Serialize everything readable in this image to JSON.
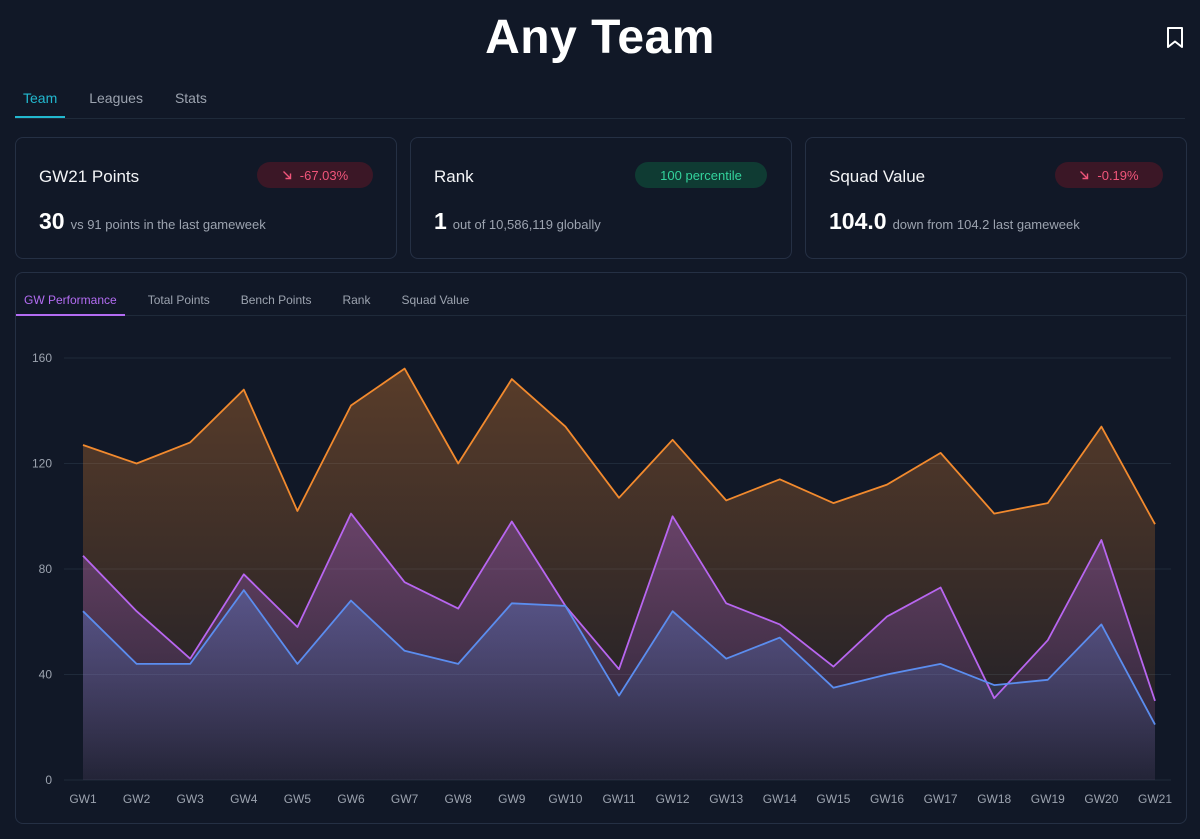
{
  "header": {
    "title": "Any Team",
    "bookmark_icon": "bookmark-icon"
  },
  "tabs": [
    {
      "label": "Team",
      "active": true
    },
    {
      "label": "Leagues",
      "active": false
    },
    {
      "label": "Stats",
      "active": false
    }
  ],
  "cards": [
    {
      "title": "GW21 Points",
      "badge": "-67.03%",
      "badge_kind": "negative",
      "badge_icon": "arrow-down-right-icon",
      "value": "30",
      "sub": "vs 91 points in the last gameweek"
    },
    {
      "title": "Rank",
      "badge": "100 percentile",
      "badge_kind": "positive",
      "value": "1",
      "sub": "out of 10,586,119 globally"
    },
    {
      "title": "Squad Value",
      "badge": "-0.19%",
      "badge_kind": "negative",
      "badge_icon": "arrow-down-right-icon",
      "value": "104.0",
      "sub": "down from 104.2 last gameweek"
    }
  ],
  "chart_tabs": [
    {
      "label": "GW Performance",
      "active": true
    },
    {
      "label": "Total Points",
      "active": false
    },
    {
      "label": "Bench Points",
      "active": false
    },
    {
      "label": "Rank",
      "active": false
    },
    {
      "label": "Squad Value",
      "active": false
    }
  ],
  "colors": {
    "orange": "#f28a2e",
    "purple": "#b866f0",
    "blue": "#5b8def",
    "accent_tab": "#22b8cf",
    "accent_chart_tab": "#b36cf2"
  },
  "chart_data": {
    "type": "area",
    "x": [
      "GW1",
      "GW2",
      "GW3",
      "GW4",
      "GW5",
      "GW6",
      "GW7",
      "GW8",
      "GW9",
      "GW10",
      "GW11",
      "GW12",
      "GW13",
      "GW14",
      "GW15",
      "GW16",
      "GW17",
      "GW18",
      "GW19",
      "GW20",
      "GW21"
    ],
    "yticks": [
      0,
      40,
      80,
      120,
      160
    ],
    "ylim": [
      0,
      160
    ],
    "grid": true,
    "legend": "none",
    "series": [
      {
        "color": "#f28a2e",
        "values": [
          127,
          120,
          128,
          148,
          102,
          142,
          156,
          120,
          152,
          134,
          107,
          129,
          106,
          114,
          105,
          112,
          124,
          101,
          105,
          134,
          97
        ]
      },
      {
        "color": "#b866f0",
        "values": [
          85,
          64,
          46,
          78,
          58,
          101,
          75,
          65,
          98,
          66,
          42,
          100,
          67,
          59,
          43,
          62,
          73,
          31,
          53,
          91,
          30
        ]
      },
      {
        "color": "#5b8def",
        "values": [
          64,
          44,
          44,
          72,
          44,
          68,
          49,
          44,
          67,
          66,
          32,
          64,
          46,
          54,
          35,
          40,
          44,
          36,
          38,
          59,
          21
        ]
      }
    ]
  }
}
